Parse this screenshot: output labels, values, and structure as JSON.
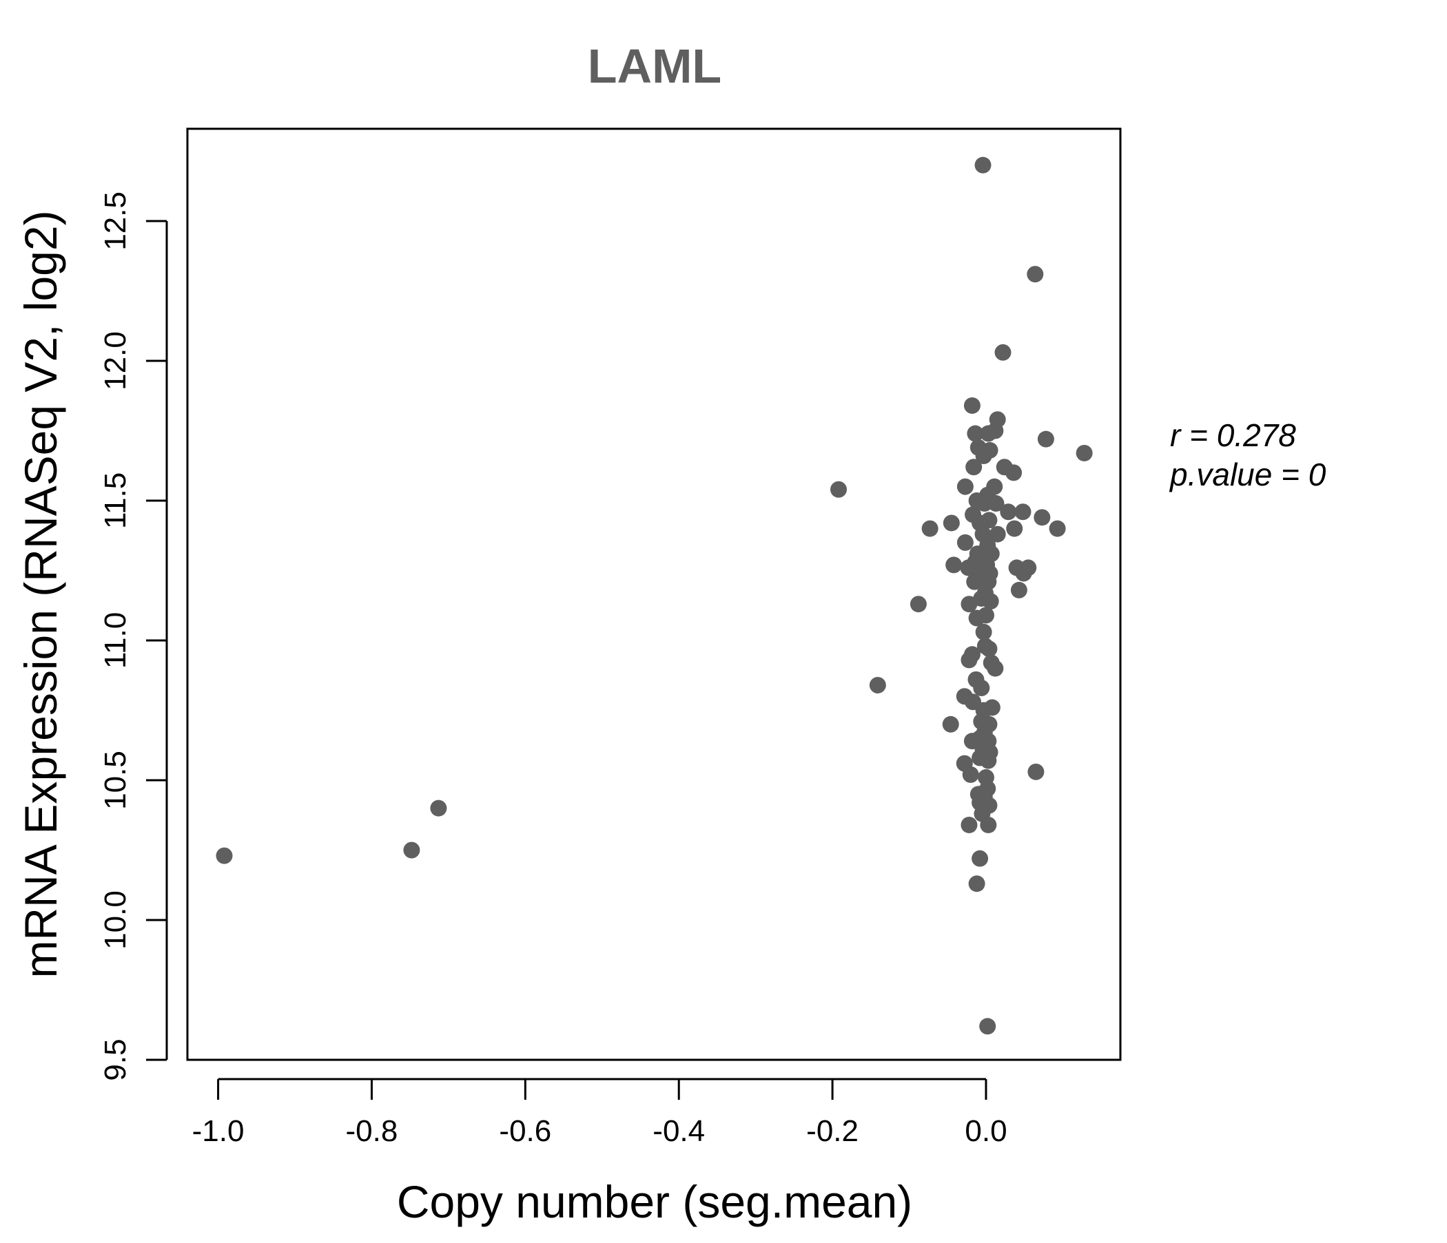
{
  "chart_data": {
    "type": "scatter",
    "title": "LAML",
    "xlabel": "Copy number (seg.mean)",
    "ylabel": "mRNA Expression (RNASeq V2, log2)",
    "xlim": [
      -1.04,
      0.175
    ],
    "ylim": [
      9.5,
      12.83
    ],
    "x_ticks": [
      -1.0,
      -0.8,
      -0.6,
      -0.4,
      -0.2,
      0.0
    ],
    "x_tick_labels": [
      "-1.0",
      "-0.8",
      "-0.6",
      "-0.4",
      "-0.2",
      "0.0"
    ],
    "y_ticks": [
      9.5,
      10.0,
      10.5,
      11.0,
      11.5,
      12.0,
      12.5
    ],
    "y_tick_labels": [
      "9.5",
      "10.0",
      "10.5",
      "11.0",
      "11.5",
      "12.0",
      "12.5"
    ],
    "annotations": {
      "r_label": "r = 0.278",
      "p_label": "p.value = 0"
    },
    "colors": {
      "point": "#5f5f5f",
      "title": "#5f5f5f",
      "axis": "#000000"
    },
    "grid": false,
    "points": [
      {
        "x": -0.004,
        "y": 12.7
      },
      {
        "x": 0.064,
        "y": 12.31
      },
      {
        "x": 0.022,
        "y": 12.03
      },
      {
        "x": -0.018,
        "y": 11.84
      },
      {
        "x": 0.015,
        "y": 11.79
      },
      {
        "x": -0.014,
        "y": 11.74
      },
      {
        "x": 0.003,
        "y": 11.74
      },
      {
        "x": 0.012,
        "y": 11.75
      },
      {
        "x": 0.078,
        "y": 11.72
      },
      {
        "x": -0.01,
        "y": 11.69
      },
      {
        "x": 0.005,
        "y": 11.68
      },
      {
        "x": 0.128,
        "y": 11.67
      },
      {
        "x": -0.003,
        "y": 11.66
      },
      {
        "x": -0.016,
        "y": 11.62
      },
      {
        "x": 0.024,
        "y": 11.62
      },
      {
        "x": 0.036,
        "y": 11.6
      },
      {
        "x": -0.192,
        "y": 11.54
      },
      {
        "x": -0.027,
        "y": 11.55
      },
      {
        "x": 0.011,
        "y": 11.55
      },
      {
        "x": 0.002,
        "y": 11.52
      },
      {
        "x": -0.012,
        "y": 11.5
      },
      {
        "x": -0.002,
        "y": 11.49
      },
      {
        "x": 0.013,
        "y": 11.49
      },
      {
        "x": 0.029,
        "y": 11.46
      },
      {
        "x": 0.048,
        "y": 11.46
      },
      {
        "x": -0.017,
        "y": 11.45
      },
      {
        "x": 0.073,
        "y": 11.44
      },
      {
        "x": 0.004,
        "y": 11.43
      },
      {
        "x": -0.045,
        "y": 11.42
      },
      {
        "x": -0.008,
        "y": 11.42
      },
      {
        "x": -0.073,
        "y": 11.4
      },
      {
        "x": 0.037,
        "y": 11.4
      },
      {
        "x": 0.093,
        "y": 11.4
      },
      {
        "x": -0.004,
        "y": 11.38
      },
      {
        "x": 0.015,
        "y": 11.38
      },
      {
        "x": -0.027,
        "y": 11.35
      },
      {
        "x": 0.002,
        "y": 11.34
      },
      {
        "x": -0.011,
        "y": 11.31
      },
      {
        "x": 0.007,
        "y": 11.31
      },
      {
        "x": -0.014,
        "y": 11.28
      },
      {
        "x": -0.042,
        "y": 11.27
      },
      {
        "x": 0.001,
        "y": 11.27
      },
      {
        "x": -0.023,
        "y": 11.26
      },
      {
        "x": 0.04,
        "y": 11.26
      },
      {
        "x": 0.055,
        "y": 11.26
      },
      {
        "x": 0.049,
        "y": 11.24
      },
      {
        "x": -0.009,
        "y": 11.24
      },
      {
        "x": 0.005,
        "y": 11.24
      },
      {
        "x": -0.015,
        "y": 11.21
      },
      {
        "x": 0.003,
        "y": 11.21
      },
      {
        "x": 0.043,
        "y": 11.18
      },
      {
        "x": -0.001,
        "y": 11.17
      },
      {
        "x": -0.006,
        "y": 11.15
      },
      {
        "x": -0.088,
        "y": 11.13
      },
      {
        "x": -0.022,
        "y": 11.13
      },
      {
        "x": 0.006,
        "y": 11.14
      },
      {
        "x": -0.012,
        "y": 11.08
      },
      {
        "x": 0.0,
        "y": 11.09
      },
      {
        "x": -0.003,
        "y": 11.03
      },
      {
        "x": -0.001,
        "y": 10.98
      },
      {
        "x": 0.004,
        "y": 10.97
      },
      {
        "x": -0.018,
        "y": 10.95
      },
      {
        "x": -0.022,
        "y": 10.93
      },
      {
        "x": 0.007,
        "y": 10.92
      },
      {
        "x": 0.012,
        "y": 10.9
      },
      {
        "x": -0.141,
        "y": 10.84
      },
      {
        "x": -0.013,
        "y": 10.86
      },
      {
        "x": -0.006,
        "y": 10.83
      },
      {
        "x": -0.028,
        "y": 10.8
      },
      {
        "x": -0.017,
        "y": 10.78
      },
      {
        "x": -0.003,
        "y": 10.75
      },
      {
        "x": 0.008,
        "y": 10.76
      },
      {
        "x": -0.046,
        "y": 10.7
      },
      {
        "x": -0.006,
        "y": 10.71
      },
      {
        "x": 0.004,
        "y": 10.7
      },
      {
        "x": -0.002,
        "y": 10.67
      },
      {
        "x": -0.018,
        "y": 10.64
      },
      {
        "x": -0.008,
        "y": 10.65
      },
      {
        "x": 0.003,
        "y": 10.64
      },
      {
        "x": -0.004,
        "y": 10.61
      },
      {
        "x": 0.005,
        "y": 10.6
      },
      {
        "x": -0.008,
        "y": 10.58
      },
      {
        "x": 0.003,
        "y": 10.57
      },
      {
        "x": -0.028,
        "y": 10.56
      },
      {
        "x": 0.065,
        "y": 10.53
      },
      {
        "x": -0.02,
        "y": 10.52
      },
      {
        "x": 0.0,
        "y": 10.51
      },
      {
        "x": 0.002,
        "y": 10.47
      },
      {
        "x": -0.01,
        "y": 10.45
      },
      {
        "x": -0.002,
        "y": 10.44
      },
      {
        "x": -0.008,
        "y": 10.42
      },
      {
        "x": 0.004,
        "y": 10.41
      },
      {
        "x": -0.713,
        "y": 10.4
      },
      {
        "x": -0.005,
        "y": 10.38
      },
      {
        "x": -0.022,
        "y": 10.34
      },
      {
        "x": 0.003,
        "y": 10.34
      },
      {
        "x": -0.748,
        "y": 10.25
      },
      {
        "x": -0.992,
        "y": 10.23
      },
      {
        "x": -0.008,
        "y": 10.22
      },
      {
        "x": -0.012,
        "y": 10.13
      },
      {
        "x": 0.002,
        "y": 9.62
      }
    ]
  }
}
